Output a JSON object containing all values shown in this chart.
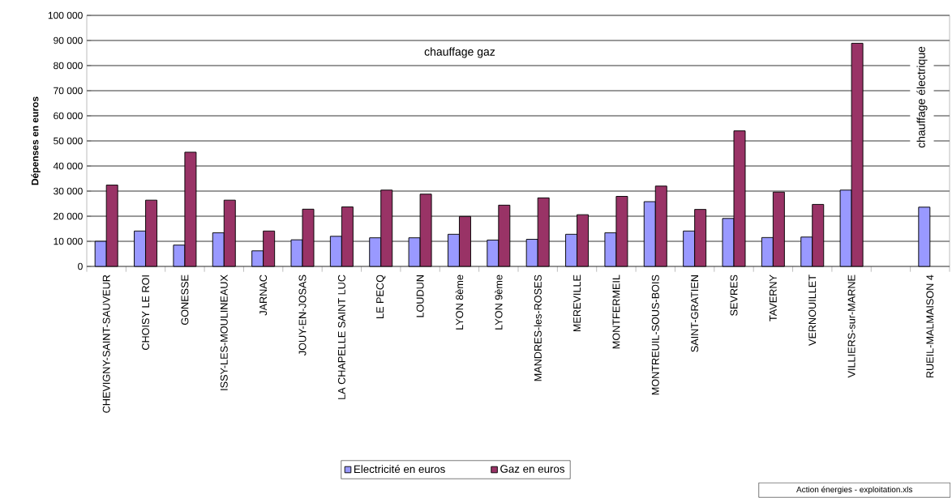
{
  "chart_data": {
    "type": "bar",
    "ylabel": "Dépenses en euros",
    "categories": [
      "CHEVIGNY-SAINT-SAUVEUR",
      "CHOISY LE ROI",
      "GONESSE",
      "ISSY-LES-MOULINEAUX",
      "JARNAC",
      "JOUY-EN-JOSAS",
      "LA CHAPELLE SAINT LUC",
      "LE PECQ",
      "LOUDUN",
      "LYON 8ème",
      "LYON 9ème",
      "MANDRES-les-ROSES",
      "MEREVILLE",
      "MONTFERMEIL",
      "MONTREUIL-SOUS-BOIS",
      "SAINT-GRATIEN",
      "SEVRES",
      "TAVERNY",
      "VERNOUILLET",
      "VILLIERS-sur-MARNE",
      null,
      "RUEIL-MALMAISON 4"
    ],
    "series": [
      {
        "name": "Electricité en euros",
        "color": "#9999ff",
        "values": [
          10000,
          14100,
          8500,
          13400,
          6200,
          10600,
          12000,
          11400,
          11400,
          12800,
          10500,
          10800,
          12800,
          13400,
          25800,
          14100,
          19100,
          11500,
          11700,
          30400,
          null,
          23600
        ]
      },
      {
        "name": "Gaz en euros",
        "color": "#993366",
        "values": [
          32400,
          26400,
          45500,
          26400,
          14100,
          22800,
          23700,
          30400,
          28800,
          19900,
          24400,
          27300,
          20600,
          27900,
          32000,
          22700,
          54000,
          29600,
          24700,
          88900,
          null,
          null
        ]
      }
    ],
    "ylim": [
      0,
      100000
    ],
    "yticks": [
      0,
      {
        "value": 10000,
        "label": "10 000"
      },
      {
        "value": 20000,
        "label": "20 000"
      },
      {
        "value": 30000,
        "label": "30 000"
      },
      {
        "value": 40000,
        "label": "40 000"
      },
      {
        "value": 50000,
        "label": "50 000"
      },
      {
        "value": 60000,
        "label": "60 000"
      },
      {
        "value": 70000,
        "label": "70 000"
      },
      {
        "value": 80000,
        "label": "80 000"
      },
      {
        "value": 90000,
        "label": "90 000"
      },
      {
        "value": 100000,
        "label": "100 000"
      }
    ],
    "grid": "y",
    "legend": "bottom",
    "annotations": [
      "chauffage gaz",
      "chauffage électrique",
      "Action énergies - exploitation.xls"
    ]
  }
}
